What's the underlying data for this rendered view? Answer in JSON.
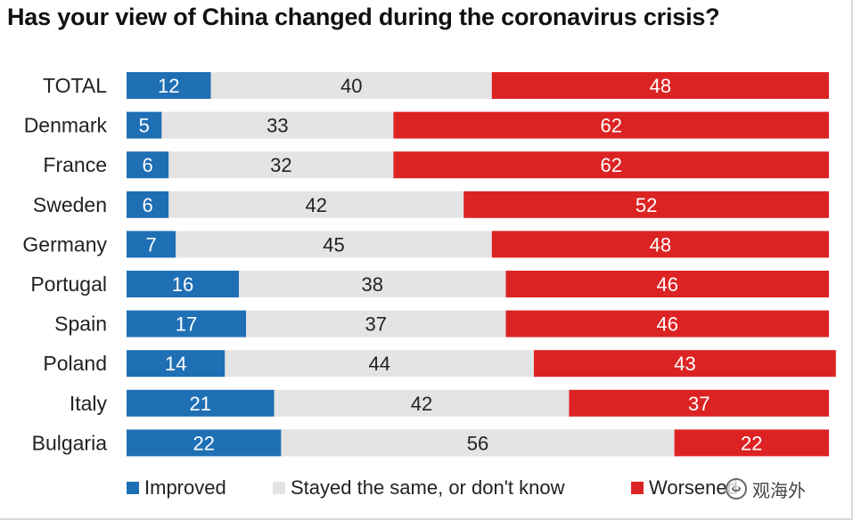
{
  "chart_data": {
    "type": "bar",
    "stacked": true,
    "orientation": "horizontal",
    "title": "Has your view of China changed during the coronavirus crisis?",
    "categories": [
      "TOTAL",
      "Denmark",
      "France",
      "Sweden",
      "Germany",
      "Portugal",
      "Spain",
      "Poland",
      "Italy",
      "Bulgaria"
    ],
    "series": [
      {
        "name": "Improved",
        "color": "#1f6fb5",
        "label_color": "#ffffff",
        "values": [
          12,
          5,
          6,
          6,
          7,
          16,
          17,
          14,
          21,
          22
        ]
      },
      {
        "name": "Stayed the same, or don't know",
        "color": "#e4e4e4",
        "label_color": "#222222",
        "values": [
          40,
          33,
          32,
          42,
          45,
          38,
          37,
          44,
          42,
          56
        ]
      },
      {
        "name": "Worsened",
        "color": "#dc2323",
        "label_color": "#ffffff",
        "values": [
          48,
          62,
          62,
          52,
          48,
          46,
          46,
          43,
          37,
          22
        ]
      }
    ],
    "xlim": [
      0,
      100
    ],
    "grid": false,
    "legend_position": "bottom"
  },
  "watermark": {
    "text": "观海外"
  }
}
